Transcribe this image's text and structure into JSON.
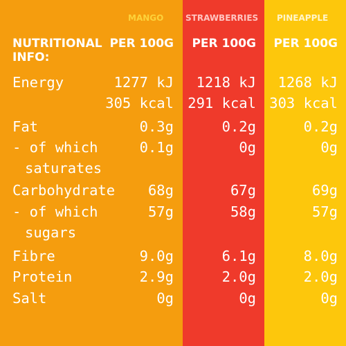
{
  "columns": [
    {
      "name": "MANGO",
      "per": "PER 100G",
      "color": "#f59d0e",
      "name_color": "#fdd23a"
    },
    {
      "name": "STRAWBERRIES",
      "per": "PER 100G",
      "color": "#ef3a2b",
      "name_color": "#ffc4c0"
    },
    {
      "name": "PINEAPPLE",
      "per": "PER 100G",
      "color": "#fdc70c",
      "name_color": "#fff5c8"
    }
  ],
  "table_title": {
    "line1": "NUTRITIONAL",
    "line2": "INFO:"
  },
  "rows": [
    {
      "label": "Energy",
      "values": [
        "1277 kJ",
        "1218 kJ",
        "1268 kJ"
      ]
    },
    {
      "label": "",
      "values": [
        "305 kcal",
        "291 kcal",
        "303 kcal"
      ]
    },
    {
      "label": "Fat",
      "values": [
        "0.3g",
        "0.2g",
        "0.2g"
      ]
    },
    {
      "label": "- of which",
      "values": [
        "0.1g",
        "0g",
        "0g"
      ]
    },
    {
      "label": "saturates",
      "values": [
        "",
        "",
        ""
      ]
    },
    {
      "label": "Carbohydrate",
      "values": [
        "68g",
        "67g",
        "69g"
      ]
    },
    {
      "label": "- of which",
      "values": [
        "57g",
        "58g",
        "57g"
      ]
    },
    {
      "label": "sugars",
      "values": [
        "",
        "",
        ""
      ]
    },
    {
      "label": "Fibre",
      "values": [
        "9.0g",
        "6.1g",
        "8.0g"
      ]
    },
    {
      "label": "Protein",
      "values": [
        "2.9g",
        "2.0g",
        "2.0g"
      ]
    },
    {
      "label": "Salt",
      "values": [
        "0g",
        "0g",
        "0g"
      ]
    }
  ]
}
